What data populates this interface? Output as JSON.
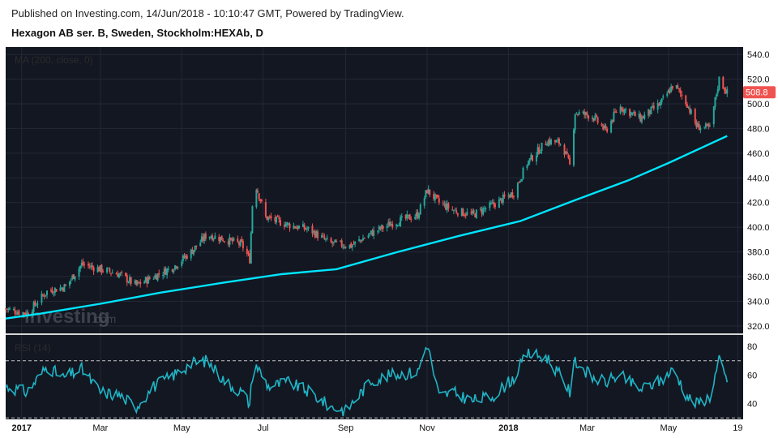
{
  "header": {
    "published": "Published on Investing.com, 14/Jun/2018 - 10:10:47 GMT, Powered by TradingView.",
    "instrument": "Hexagon AB ser. B, Sweden, Stockholm:HEXAb, D"
  },
  "watermark": {
    "brand": "Investing",
    "suffix": ".com"
  },
  "colors": {
    "background": "#131722",
    "up": "#26a69a",
    "down": "#ef5350",
    "ma": "#00e5ff",
    "rsi": "#1fb5c5",
    "price_tag": "#ef5350"
  },
  "chart_data": [
    {
      "type": "candlestick",
      "indicator_label": "MA (200, close, 0)",
      "y_ticks": [
        "540.0",
        "520.0",
        "500.0",
        "480.0",
        "460.0",
        "440.0",
        "420.0",
        "400.0",
        "380.0",
        "360.0",
        "340.0",
        "320.0"
      ],
      "ylim": [
        314,
        546
      ],
      "last_price_label": "508.8",
      "x_ticks": [
        "2017",
        "Mar",
        "May",
        "Jul",
        "Sep",
        "Nov",
        "2018",
        "Mar",
        "May",
        "19"
      ],
      "bold_x_ticks": [
        "2017",
        "2018"
      ],
      "price_path": [
        [
          "2016-12-20",
          334
        ],
        [
          "2017-01-05",
          330
        ],
        [
          "2017-01-20",
          348
        ],
        [
          "2017-02-03",
          352
        ],
        [
          "2017-02-15",
          370
        ],
        [
          "2017-03-01",
          366
        ],
        [
          "2017-03-15",
          362
        ],
        [
          "2017-03-28",
          353
        ],
        [
          "2017-04-10",
          360
        ],
        [
          "2017-04-25",
          368
        ],
        [
          "2017-05-08",
          380
        ],
        [
          "2017-05-20",
          394
        ],
        [
          "2017-06-03",
          390
        ],
        [
          "2017-06-15",
          386
        ],
        [
          "2017-06-21",
          374
        ],
        [
          "2017-06-24",
          440
        ],
        [
          "2017-07-03",
          408
        ],
        [
          "2017-07-20",
          402
        ],
        [
          "2017-08-05",
          398
        ],
        [
          "2017-08-20",
          387
        ],
        [
          "2017-09-05",
          385
        ],
        [
          "2017-09-20",
          395
        ],
        [
          "2017-10-05",
          403
        ],
        [
          "2017-10-25",
          410
        ],
        [
          "2017-11-01",
          430
        ],
        [
          "2017-11-10",
          420
        ],
        [
          "2017-11-20",
          414
        ],
        [
          "2017-12-05",
          410
        ],
        [
          "2017-12-20",
          418
        ],
        [
          "2018-01-05",
          428
        ],
        [
          "2018-01-15",
          452
        ],
        [
          "2018-01-30",
          470
        ],
        [
          "2018-02-10",
          468
        ],
        [
          "2018-02-16",
          450
        ],
        [
          "2018-02-20",
          493
        ],
        [
          "2018-03-05",
          490
        ],
        [
          "2018-03-15",
          478
        ],
        [
          "2018-03-25",
          498
        ],
        [
          "2018-04-10",
          488
        ],
        [
          "2018-04-25",
          500
        ],
        [
          "2018-05-05",
          516
        ],
        [
          "2018-05-15",
          500
        ],
        [
          "2018-05-22",
          482
        ],
        [
          "2018-06-01",
          480
        ],
        [
          "2018-06-08",
          520
        ],
        [
          "2018-06-14",
          509
        ]
      ],
      "moving_average": [
        [
          "2016-12-20",
          326
        ],
        [
          "2017-01-15",
          330
        ],
        [
          "2017-03-01",
          338
        ],
        [
          "2017-04-15",
          347
        ],
        [
          "2017-06-01",
          355
        ],
        [
          "2017-07-15",
          362
        ],
        [
          "2017-08-25",
          366
        ],
        [
          "2017-10-10",
          380
        ],
        [
          "2017-11-25",
          393
        ],
        [
          "2018-01-10",
          405
        ],
        [
          "2018-02-20",
          422
        ],
        [
          "2018-04-01",
          438
        ],
        [
          "2018-05-01",
          452
        ],
        [
          "2018-06-14",
          474
        ]
      ]
    },
    {
      "type": "line",
      "indicator_label": "RSI (14)",
      "y_ticks": [
        "80",
        "60",
        "40"
      ],
      "reference_lines": [
        70,
        30
      ],
      "ylim": [
        29,
        88
      ],
      "rsi_path": [
        [
          "2016-12-20",
          52
        ],
        [
          "2017-01-05",
          48
        ],
        [
          "2017-01-20",
          66
        ],
        [
          "2017-02-01",
          58
        ],
        [
          "2017-02-15",
          64
        ],
        [
          "2017-03-01",
          48
        ],
        [
          "2017-03-15",
          46
        ],
        [
          "2017-03-28",
          38
        ],
        [
          "2017-04-10",
          52
        ],
        [
          "2017-04-25",
          60
        ],
        [
          "2017-05-08",
          68
        ],
        [
          "2017-05-20",
          70
        ],
        [
          "2017-06-03",
          55
        ],
        [
          "2017-06-15",
          48
        ],
        [
          "2017-06-21",
          40
        ],
        [
          "2017-06-24",
          70
        ],
        [
          "2017-07-05",
          52
        ],
        [
          "2017-07-20",
          55
        ],
        [
          "2017-08-05",
          48
        ],
        [
          "2017-08-20",
          38
        ],
        [
          "2017-09-01",
          35
        ],
        [
          "2017-09-20",
          56
        ],
        [
          "2017-10-05",
          60
        ],
        [
          "2017-10-25",
          62
        ],
        [
          "2017-11-01",
          82
        ],
        [
          "2017-11-10",
          45
        ],
        [
          "2017-11-20",
          48
        ],
        [
          "2017-12-05",
          42
        ],
        [
          "2017-12-20",
          45
        ],
        [
          "2018-01-05",
          58
        ],
        [
          "2018-01-15",
          75
        ],
        [
          "2018-01-30",
          72
        ],
        [
          "2018-02-10",
          58
        ],
        [
          "2018-02-16",
          48
        ],
        [
          "2018-02-20",
          70
        ],
        [
          "2018-03-05",
          58
        ],
        [
          "2018-03-15",
          55
        ],
        [
          "2018-03-25",
          60
        ],
        [
          "2018-04-10",
          50
        ],
        [
          "2018-04-25",
          56
        ],
        [
          "2018-05-05",
          64
        ],
        [
          "2018-05-15",
          45
        ],
        [
          "2018-05-22",
          40
        ],
        [
          "2018-06-01",
          45
        ],
        [
          "2018-06-08",
          70
        ],
        [
          "2018-06-14",
          55
        ]
      ]
    }
  ]
}
